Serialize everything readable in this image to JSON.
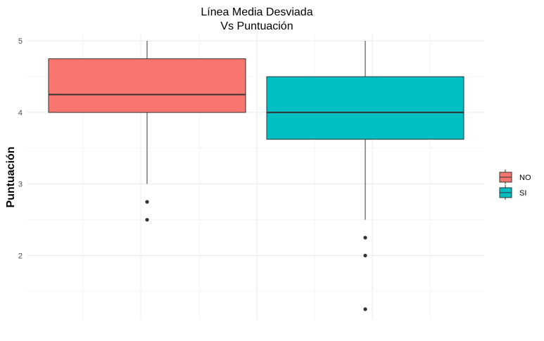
{
  "chart_data": {
    "type": "boxplot",
    "title": [
      "Línea Media Desviada",
      "Vs Puntuación"
    ],
    "xlabel": "",
    "ylabel": "Puntuación",
    "ylim": [
      1.1,
      5.1
    ],
    "yticks": [
      2,
      3,
      4,
      5
    ],
    "grid": true,
    "legend_position": "right",
    "series": [
      {
        "name": "NO",
        "color": "#F8766D",
        "q1": 4.0,
        "median": 4.25,
        "q3": 4.75,
        "whisker_low": 3.0,
        "whisker_high": 5.0,
        "outliers": [
          2.75,
          2.5
        ]
      },
      {
        "name": "SI",
        "color": "#00BFC4",
        "q1": 3.625,
        "median": 4.0,
        "q3": 4.5,
        "whisker_low": 2.5,
        "whisker_high": 5.0,
        "outliers": [
          2.25,
          2.0,
          1.25
        ]
      }
    ]
  }
}
